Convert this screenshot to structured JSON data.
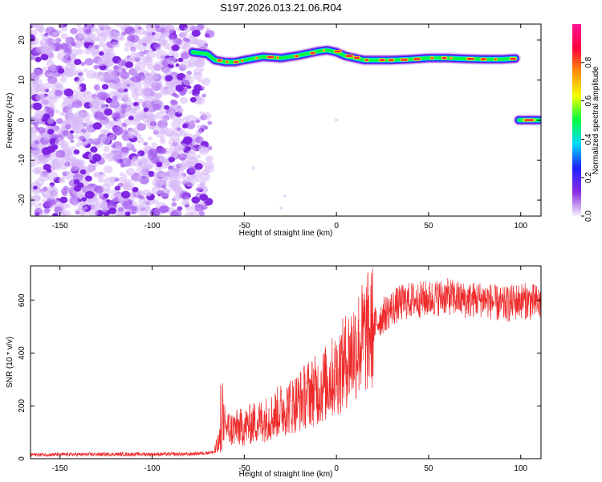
{
  "title": "S197.2026.013.21.06.R04",
  "colors": {
    "snr_line": "#ee2a2a",
    "axis": "#000000",
    "noise": "#8a2be2"
  },
  "chart_data": [
    {
      "type": "heatmap",
      "name": "spectrogram",
      "xlabel": "Height of straight line (km)",
      "ylabel": "Frequency (Hz)",
      "xlim": [
        -166,
        111
      ],
      "ylim": [
        -24,
        24
      ],
      "xticks": [
        -150,
        -100,
        -50,
        0,
        50,
        100
      ],
      "xtick_labels": [
        "-150",
        "-100",
        "-50",
        "0",
        "50",
        "100"
      ],
      "yticks": [
        -20,
        -10,
        0,
        10,
        20
      ],
      "ytick_labels": [
        "-20",
        "-10",
        "0",
        "10",
        "20"
      ],
      "colorbar": {
        "label": "Normalized spectral amplitude",
        "range": [
          0,
          1
        ],
        "ticks": [
          0.0,
          0.2,
          0.4,
          0.6,
          0.8
        ],
        "tick_labels": [
          "0.0",
          "0.2",
          "0.4",
          "0.6",
          "0.8"
        ],
        "colormap": [
          "#f7f0fb",
          "#8a2be2",
          "#2020ff",
          "#00d8ff",
          "#00ff40",
          "#f0ff00",
          "#ff9000",
          "#ff0040",
          "#ff1493"
        ]
      },
      "noise_region_x": [
        -166,
        -72
      ],
      "main_trace": {
        "x": [
          -78,
          -70,
          -66,
          -60,
          -55,
          -50,
          -40,
          -30,
          -20,
          -10,
          -5,
          0,
          5,
          10,
          15,
          20,
          25,
          30,
          40,
          50,
          60,
          70,
          80,
          90,
          97
        ],
        "y": [
          17,
          16.5,
          15,
          14.5,
          14.5,
          15,
          15.8,
          15.5,
          16.2,
          17.2,
          17.5,
          17,
          16,
          15.5,
          15,
          15,
          15,
          15,
          15.2,
          15.5,
          15.5,
          15.3,
          15.2,
          15.2,
          15.4
        ]
      },
      "secondary_trace": {
        "x": [
          99,
          110
        ],
        "y": [
          0,
          0
        ]
      }
    },
    {
      "type": "line",
      "name": "snr",
      "xlabel": "Height of straight line (km)",
      "ylabel": "SNR (10 * v/v)",
      "xlim": [
        -166,
        111
      ],
      "ylim": [
        0,
        730
      ],
      "xticks": [
        -150,
        -100,
        -50,
        0,
        50,
        100
      ],
      "xtick_labels": [
        "-150",
        "-100",
        "-50",
        "0",
        "50",
        "100"
      ],
      "yticks": [
        0,
        200,
        400,
        600
      ],
      "ytick_labels": [
        "0",
        "200",
        "400",
        "600"
      ],
      "series": [
        {
          "name": "SNR",
          "x": [
            -166,
            -140,
            -110,
            -80,
            -66,
            -63,
            -61,
            -58,
            -55,
            -50,
            -45,
            -40,
            -35,
            -30,
            -25,
            -20,
            -15,
            -10,
            -5,
            0,
            5,
            10,
            15,
            20,
            25,
            30,
            35,
            40,
            50,
            60,
            70,
            80,
            90,
            100,
            110
          ],
          "y": [
            15,
            16,
            17,
            17,
            25,
            70,
            140,
            110,
            115,
            120,
            135,
            145,
            160,
            185,
            200,
            220,
            250,
            260,
            290,
            320,
            370,
            420,
            460,
            500,
            540,
            570,
            590,
            600,
            605,
            615,
            600,
            605,
            580,
            600,
            590
          ]
        }
      ]
    }
  ]
}
